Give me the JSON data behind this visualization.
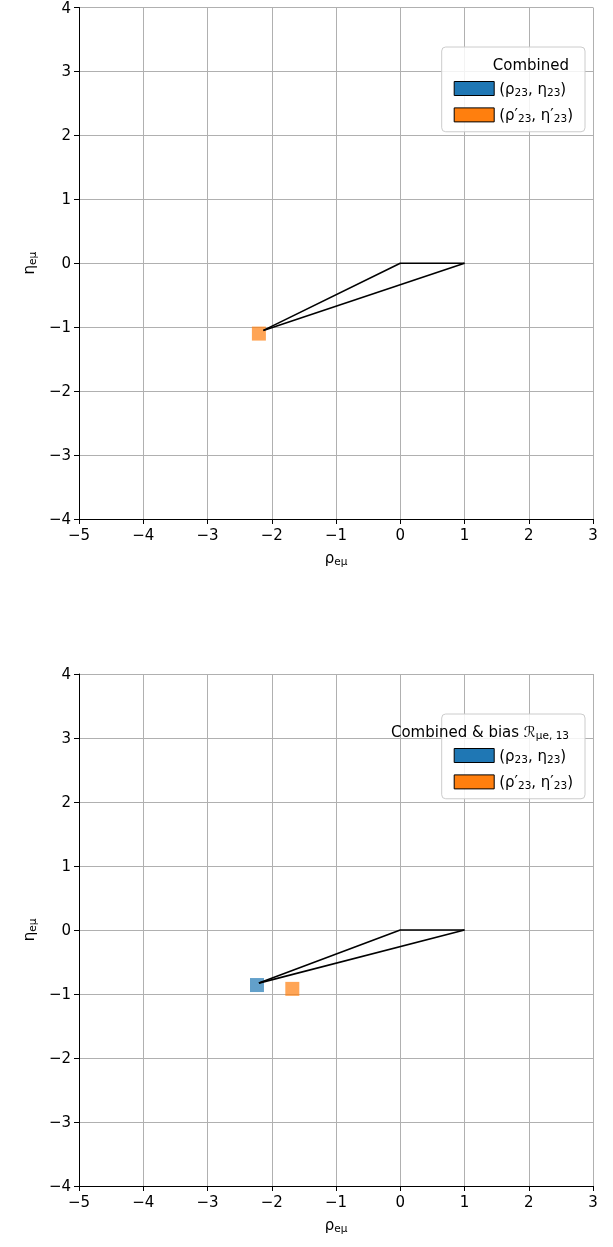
{
  "chart_data": [
    {
      "type": "scatter",
      "legend_title": "Combined",
      "xlabel": "ρ$_{eμ}$",
      "ylabel": "η$_{eμ}$",
      "xlim": [
        -5,
        3
      ],
      "ylim": [
        -4,
        4
      ],
      "xticks": [
        -5,
        -4,
        -3,
        -2,
        -1,
        0,
        1,
        2,
        3
      ],
      "yticks": [
        -4,
        -3,
        -2,
        -1,
        0,
        1,
        2,
        3,
        4
      ],
      "grid": true,
      "legend": "top right",
      "marker": "square",
      "series": [
        {
          "name": "(ρ$_{23}$, η$_{23}$)",
          "color": "#1f77b4",
          "x": [
            null
          ],
          "values": [
            null
          ]
        },
        {
          "name": "(ρ′$_{23}$, η′$_{23}$)",
          "color": "#ff7f0e",
          "x": [
            -2.2
          ],
          "values": [
            -1.1
          ]
        },
        {
          "type": "line",
          "marker": "none",
          "color": "#000000",
          "x": [
            -2.13,
            0,
            1
          ],
          "values": [
            -1.05,
            0,
            0
          ]
        },
        {
          "type": "line",
          "marker": "none",
          "color": "#000000",
          "x": [
            -2.13,
            1
          ],
          "values": [
            -1.05,
            0
          ]
        }
      ]
    },
    {
      "type": "scatter",
      "legend_title": "Combined & bias ℛ$_{μe, 13}$",
      "xlabel": "ρ$_{eμ}$",
      "ylabel": "η$_{eμ}$",
      "xlim": [
        -5,
        3
      ],
      "ylim": [
        -4,
        4
      ],
      "xticks": [
        -5,
        -4,
        -3,
        -2,
        -1,
        0,
        1,
        2,
        3
      ],
      "yticks": [
        -4,
        -3,
        -2,
        -1,
        0,
        1,
        2,
        3,
        4
      ],
      "grid": true,
      "legend": "top right",
      "marker": "square",
      "series": [
        {
          "name": "(ρ$_{23}$, η$_{23}$)",
          "color": "#1f77b4",
          "x": [
            -2.23
          ],
          "values": [
            -0.86
          ]
        },
        {
          "name": "(ρ′$_{23}$, η′$_{23}$)",
          "color": "#ff7f0e",
          "x": [
            -1.68
          ],
          "values": [
            -0.92
          ]
        },
        {
          "type": "line",
          "marker": "none",
          "color": "#000000",
          "x": [
            -2.2,
            0,
            1
          ],
          "values": [
            -0.83,
            0,
            0
          ]
        },
        {
          "type": "line",
          "marker": "none",
          "color": "#000000",
          "x": [
            -2.2,
            1
          ],
          "values": [
            -0.83,
            0
          ]
        }
      ]
    }
  ]
}
